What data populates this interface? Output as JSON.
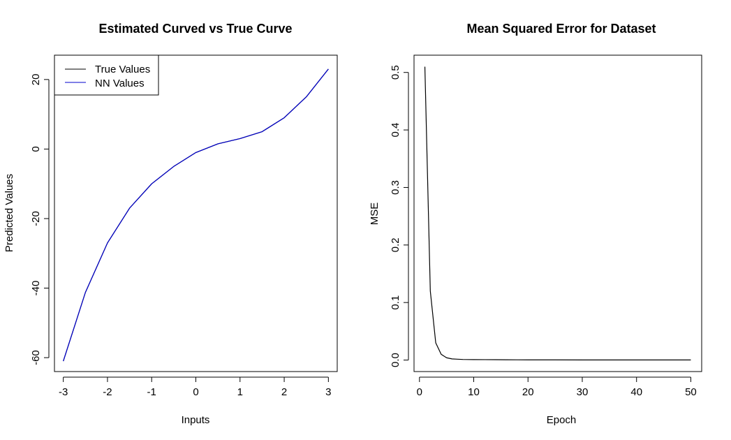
{
  "chart_data": [
    {
      "type": "line",
      "title": "Estimated Curved vs True Curve",
      "xlabel": "Inputs",
      "ylabel": "Predicted Values",
      "xlim": [
        -3.2,
        3.2
      ],
      "ylim": [
        -64,
        27
      ],
      "xticks": [
        -3,
        -2,
        -1,
        0,
        1,
        2,
        3
      ],
      "xtick_labels": [
        "-3",
        "-2",
        "-1",
        "0",
        "1",
        "2",
        "3"
      ],
      "yticks": [
        -60,
        -40,
        -20,
        0,
        20
      ],
      "ytick_labels": [
        "-60",
        "-40",
        "-20",
        "0",
        "20"
      ],
      "legend_position": "top-left",
      "series": [
        {
          "name": "True Values",
          "color": "#000000",
          "x": [
            -3,
            -2.5,
            -2,
            -1.5,
            -1,
            -0.5,
            0,
            0.5,
            1,
            1.5,
            2,
            2.5,
            3
          ],
          "y": [
            -61,
            -41.25,
            -27,
            -17,
            -10,
            -5,
            -1,
            1.5,
            3,
            5,
            9,
            15,
            23
          ]
        },
        {
          "name": "NN Values",
          "color": "#0000cd",
          "x": [
            -3,
            -2.5,
            -2,
            -1.5,
            -1,
            -0.5,
            0,
            0.5,
            1,
            1.5,
            2,
            2.5,
            3
          ],
          "y": [
            -61,
            -41.25,
            -27,
            -17,
            -10,
            -5,
            -1,
            1.5,
            3,
            5,
            9,
            15,
            23
          ]
        }
      ]
    },
    {
      "type": "line",
      "title": "Mean Squared Error for Dataset",
      "xlabel": "Epoch",
      "ylabel": "MSE",
      "xlim": [
        -1,
        52
      ],
      "ylim": [
        -0.02,
        0.53
      ],
      "xticks": [
        0,
        10,
        20,
        30,
        40,
        50
      ],
      "xtick_labels": [
        "0",
        "10",
        "20",
        "30",
        "40",
        "50"
      ],
      "yticks": [
        0,
        0.1,
        0.2,
        0.3,
        0.4,
        0.5
      ],
      "ytick_labels": [
        "0.0",
        "0.1",
        "0.2",
        "0.3",
        "0.4",
        "0.5"
      ],
      "series": [
        {
          "color": "#000000",
          "x": [
            1,
            2,
            3,
            4,
            5,
            6,
            7,
            8,
            9,
            10,
            12,
            14,
            16,
            18,
            20,
            25,
            30,
            35,
            40,
            45,
            50
          ],
          "y": [
            0.51,
            0.12,
            0.03,
            0.01,
            0.004,
            0.002,
            0.0015,
            0.001,
            0.0009,
            0.0008,
            0.0007,
            0.0006,
            0.0005,
            0.0004,
            0.0003,
            0.0003,
            0.0002,
            0.0002,
            0.0002,
            0.0002,
            0.0002
          ]
        }
      ]
    }
  ]
}
